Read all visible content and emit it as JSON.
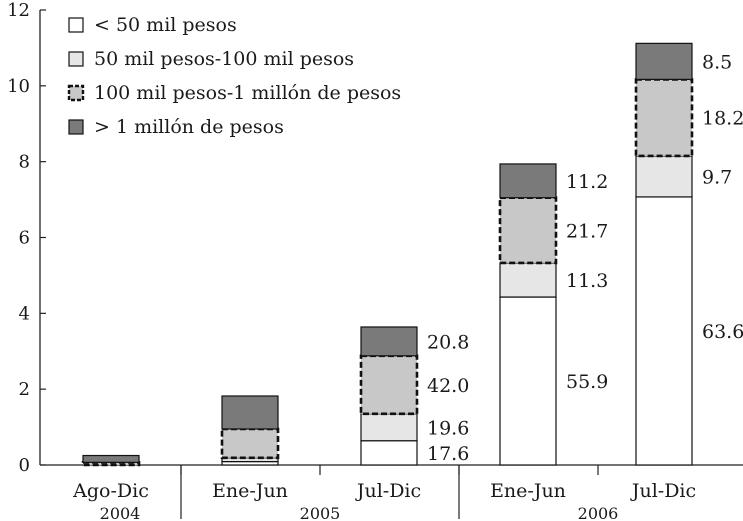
{
  "chart_data": {
    "type": "bar",
    "stacked": true,
    "categories": [
      "Ago-Dic",
      "Ene-Jun",
      "Jul-Dic",
      "Ene-Jun",
      "Jul-Dic"
    ],
    "years": [
      {
        "label": "2004",
        "span": [
          0,
          0
        ]
      },
      {
        "label": "2005",
        "span": [
          1,
          2
        ]
      },
      {
        "label": "2006",
        "span": [
          3,
          4
        ]
      }
    ],
    "ylim": [
      0,
      12
    ],
    "yticks": [
      0,
      2,
      4,
      6,
      8,
      10,
      12
    ],
    "series": [
      {
        "name": "< 50 mil pesos",
        "color": "#ffffff",
        "dashed": false,
        "values": [
          0.0,
          0.09,
          0.64,
          4.43,
          7.07
        ],
        "labels": [
          "",
          "",
          "17.6",
          "55.9",
          "63.6"
        ]
      },
      {
        "name": "50 mil pesos-100 mil pesos",
        "color": "#e6e6e6",
        "dashed": false,
        "values": [
          0.0,
          0.1,
          0.71,
          0.9,
          1.08
        ],
        "labels": [
          "",
          "",
          "19.6",
          "11.3",
          "9.7"
        ]
      },
      {
        "name": "100 mil pesos-1 millón de pesos",
        "color": "#c8c8c8",
        "dashed": true,
        "values": [
          0.07,
          0.76,
          1.53,
          1.72,
          2.02
        ],
        "labels": [
          "",
          "",
          "42.0",
          "21.7",
          "18.2"
        ]
      },
      {
        "name": "> 1 millón de pesos",
        "color": "#7a7a7a",
        "dashed": false,
        "values": [
          0.18,
          0.87,
          0.76,
          0.89,
          0.95
        ],
        "labels": [
          "",
          "",
          "20.8",
          "11.2",
          "8.5"
        ]
      }
    ],
    "legend": "top-left",
    "grid": false
  }
}
